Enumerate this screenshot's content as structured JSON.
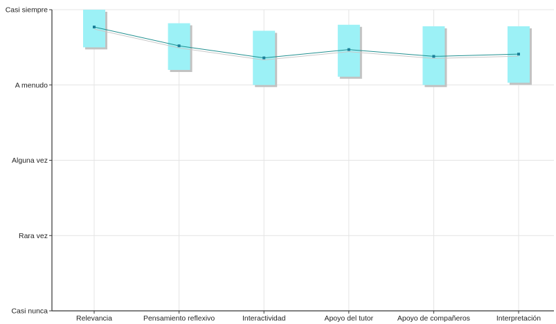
{
  "chart_data": {
    "type": "line",
    "title": "",
    "xlabel": "",
    "ylabel": "",
    "categories": [
      "Relevancia",
      "Pensamiento reflexivo",
      "Interactividad",
      "Apoyo del tutor",
      "Apoyo de compañeros",
      "Interpretación"
    ],
    "y_ticks": [
      {
        "value": 1,
        "label": "Casi nunca"
      },
      {
        "value": 2,
        "label": "Rara vez"
      },
      {
        "value": 3,
        "label": "Alguna vez"
      },
      {
        "value": 4,
        "label": "A menudo"
      },
      {
        "value": 5,
        "label": "Casi siempre"
      }
    ],
    "ylim": [
      1,
      5
    ],
    "grid": true,
    "legend": "none",
    "series": [
      {
        "values": [
          4.77,
          4.52,
          4.36,
          4.47,
          4.38,
          4.41
        ]
      }
    ],
    "ranges": [
      {
        "low": 4.5,
        "high": 5.0
      },
      {
        "low": 4.2,
        "high": 4.82
      },
      {
        "low": 4.0,
        "high": 4.72
      },
      {
        "low": 4.11,
        "high": 4.8
      },
      {
        "low": 4.0,
        "high": 4.78
      },
      {
        "low": 4.03,
        "high": 4.78
      }
    ],
    "colors": {
      "box_fill": "#9cf1f6",
      "box_shadow": "#c2c2c2",
      "line": "#1f8f8f",
      "line_shadow": "#c8c8c8",
      "marker": "#1a7f99",
      "grid": "#e4e4e4",
      "axis": "#333333"
    }
  }
}
